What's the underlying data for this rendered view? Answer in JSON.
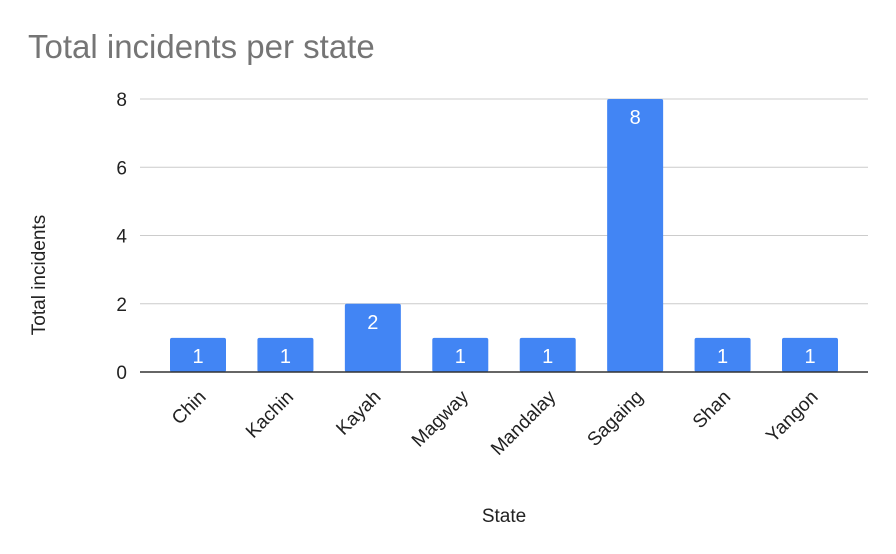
{
  "chart_data": {
    "type": "bar",
    "title": "Total incidents per state",
    "xlabel": "State",
    "ylabel": "Total incidents",
    "categories": [
      "Chin",
      "Kachin",
      "Kayah",
      "Magway",
      "Mandalay",
      "Sagaing",
      "Shan",
      "Yangon"
    ],
    "values": [
      1,
      1,
      2,
      1,
      1,
      8,
      1,
      1
    ],
    "ylim": [
      0,
      8
    ],
    "yticks": [
      0,
      2,
      4,
      6,
      8
    ],
    "grid": true,
    "legend": "none",
    "data_labels": true,
    "bar_color": "#4285f4",
    "gridline_color": "#cccccc",
    "axis_color": "#333333"
  }
}
